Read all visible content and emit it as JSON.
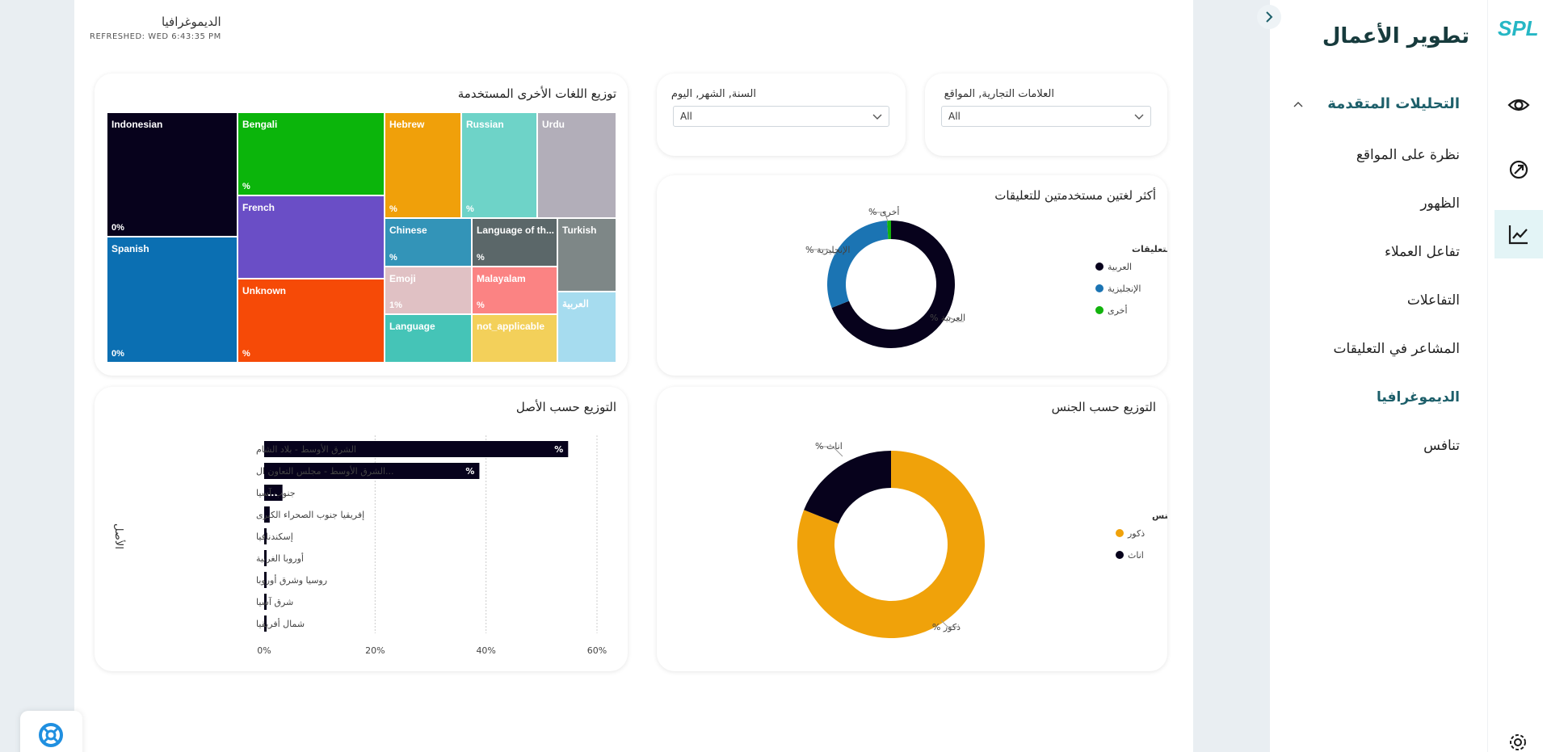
{
  "page": {
    "title": "الديموغرافيا",
    "refreshed": "REFRESHED: WED 6:43:35 PM"
  },
  "sidebar": {
    "brand": "تطوير الأعمال",
    "logo_text": "SPL",
    "section": "التحليلات المتقدمة",
    "items": [
      {
        "label": "نظرة على المواقع",
        "active": false
      },
      {
        "label": "الظهور",
        "active": false
      },
      {
        "label": "تفاعل العملاء",
        "active": false
      },
      {
        "label": "التفاعلات",
        "active": false
      },
      {
        "label": "المشاعر في التعليقات",
        "active": false
      },
      {
        "label": "الديموغرافيا",
        "active": true
      },
      {
        "label": "تنافس",
        "active": false
      }
    ]
  },
  "iconbar": {
    "icons": [
      "eye-icon",
      "rocket-icon",
      "chart-line-icon",
      "gear-icon"
    ],
    "accent": "#e3f4f6"
  },
  "slicers": {
    "brands": {
      "label": "العلامات التجارية, المواقع",
      "value": "All"
    },
    "date": {
      "label": "السنة, الشهر, اليوم",
      "value": "All"
    }
  },
  "treemap": {
    "title": "توزيع اللغات الأخرى المستخدمة",
    "cells": [
      {
        "label": "Indonesian",
        "pct": "0%",
        "color": "#07021c"
      },
      {
        "label": "Spanish",
        "pct": "0%",
        "color": "#0b6fb2"
      },
      {
        "label": "Bengali",
        "pct": "%",
        "color": "#0bb50b"
      },
      {
        "label": "French",
        "pct": "",
        "color": "#6a4ec6"
      },
      {
        "label": "Unknown",
        "pct": "%",
        "color": "#f64a07"
      },
      {
        "label": "Hebrew",
        "pct": "%",
        "color": "#f0a00a"
      },
      {
        "label": "Russian",
        "pct": "%",
        "color": "#6ed3c8"
      },
      {
        "label": "Urdu",
        "pct": "",
        "color": "#b2aeb9"
      },
      {
        "label": "Chinese",
        "pct": "%",
        "color": "#3394b8"
      },
      {
        "label": "Language of th...",
        "pct": "%",
        "color": "#5b6769"
      },
      {
        "label": "Turkish",
        "pct": "",
        "color": "#7e8787"
      },
      {
        "label": "Emoji",
        "pct": "1%",
        "color": "#e0c1c4"
      },
      {
        "label": "Malayalam",
        "pct": "%",
        "color": "#fb8383"
      },
      {
        "label": "Language",
        "pct": "",
        "color": "#45c4b7"
      },
      {
        "label": "not_applicable",
        "pct": "",
        "color": "#f3d05a"
      },
      {
        "label": "العربية",
        "pct": "",
        "color": "#a6dcef"
      }
    ]
  },
  "comments_donut": {
    "title": "أكثر لغتين مستخدمتين للتعليقات",
    "legend_title": "لغة التعليقات",
    "labels": [
      "العربية %",
      "الإنجليزية %",
      "أخرى %"
    ],
    "legend": [
      "العربية",
      "الإنجليزية",
      "أخرى"
    ],
    "colors": [
      "#07021c",
      "#1b74b3",
      "#12b30d"
    ]
  },
  "origin_bar": {
    "title": "التوزيع حسب الأصل",
    "ylabel": "الأصل",
    "bar_labels": [
      "%",
      "%",
      "..."
    ]
  },
  "gender_donut": {
    "title": "التوزيع حسب الجنس",
    "legend_title": "الجنس",
    "labels": [
      "ذكور %",
      "اناث %"
    ],
    "legend": [
      "ذكور",
      "اناث"
    ],
    "colors": [
      "#f0a20a",
      "#07021c"
    ]
  },
  "chart_data": [
    {
      "type": "pie",
      "title": "أكثر لغتين مستخدمتين للتعليقات",
      "categories": [
        "العربية",
        "الإنجليزية",
        "أخرى"
      ],
      "values": [
        69,
        30,
        1
      ],
      "legend": "left"
    },
    {
      "type": "bar",
      "title": "التوزيع حسب الأصل",
      "ylabel": "الأصل",
      "categories": [
        "الشرق الأوسط - بلاد الشام",
        "...الشرق الأوسط - مجلس التعاون ال",
        "جنوب آسيا",
        "إفريقيا جنوب الصحراء الكبرى",
        "إسكندنافيا",
        "أوروبا الغربية",
        "روسيا وشرق أوروبا",
        "شرق آسيا",
        "شمال أفريقيا"
      ],
      "values": [
        54.8,
        38.8,
        3.3,
        1.0,
        0.3,
        0.3,
        0.3,
        0.3,
        0.3
      ],
      "xticks": [
        "0%",
        "20%",
        "40%",
        "60%"
      ],
      "xlim": [
        0,
        60
      ],
      "grid": true
    },
    {
      "type": "pie",
      "title": "التوزيع حسب الجنس",
      "categories": [
        "ذكور",
        "اناث"
      ],
      "values": [
        81,
        19
      ],
      "legend": "left"
    }
  ]
}
